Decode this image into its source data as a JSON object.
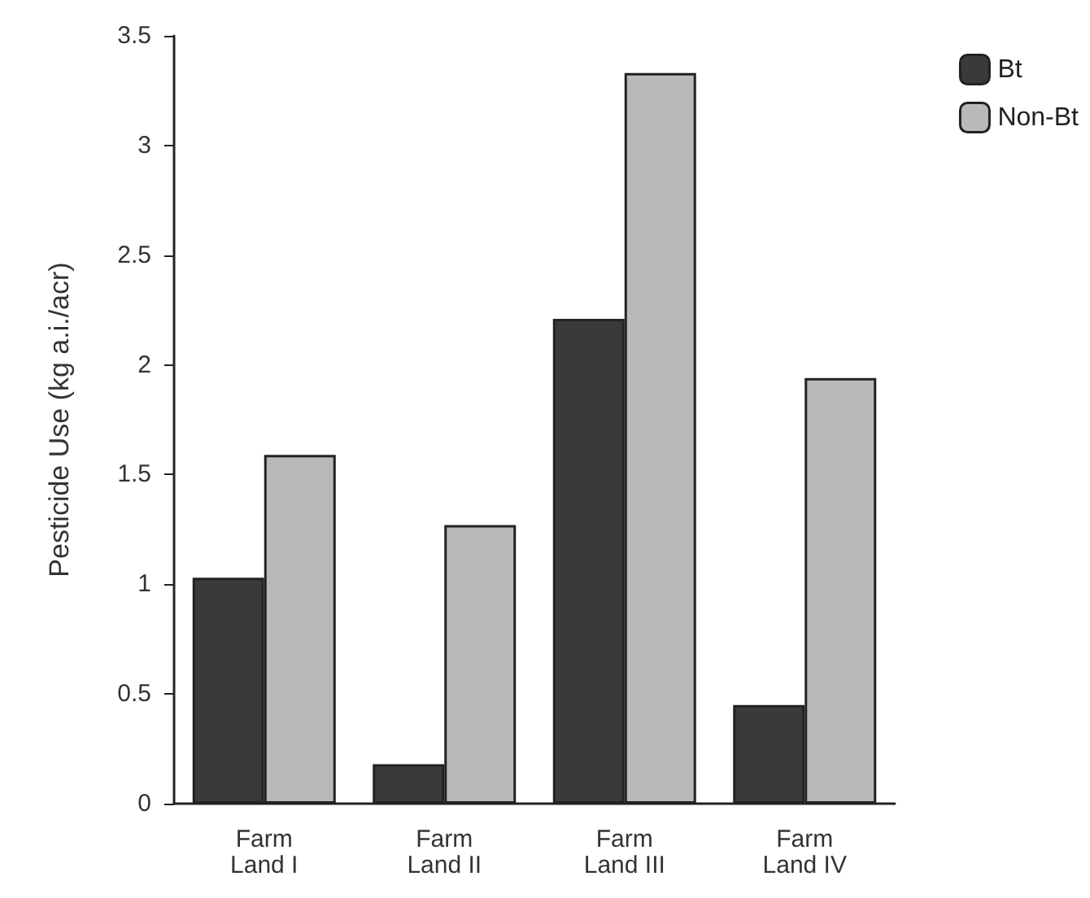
{
  "chart_data": {
    "type": "bar",
    "ylabel": "Pesticide Use (kg a.i./acr)",
    "categories": [
      "Farm\nLand I",
      "Farm\nLand II",
      "Farm\nLand III",
      "Farm\nLand IV"
    ],
    "series": [
      {
        "name": "Bt",
        "color": "#3a3a3a",
        "values": [
          1.03,
          0.18,
          2.21,
          0.45
        ]
      },
      {
        "name": "Non-Bt",
        "color": "#b8b9bb",
        "values": [
          1.59,
          1.27,
          3.33,
          1.94
        ]
      }
    ],
    "ylim": [
      0,
      3.5
    ],
    "yticks": [
      0,
      0.5,
      1,
      1.5,
      2,
      2.5,
      3,
      3.5
    ],
    "grid": false,
    "legend": "top right"
  }
}
